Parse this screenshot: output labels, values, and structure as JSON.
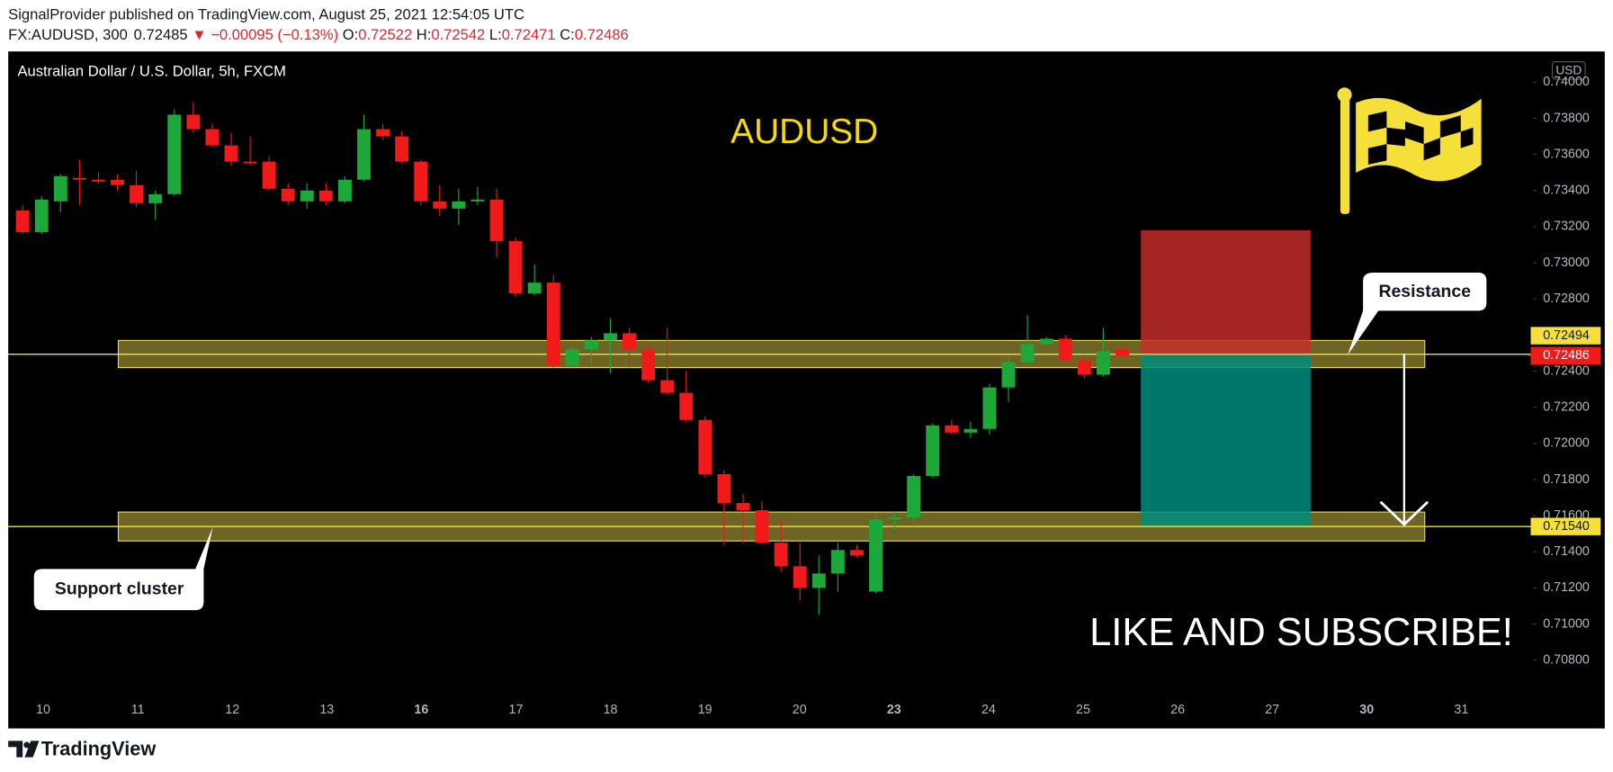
{
  "header": {
    "publisher": "SignalProvider published on TradingView.com, August 25, 2021 12:54:05 UTC",
    "symbol": "FX:AUDUSD, 300",
    "price": "0.72485",
    "change": "▼ −0.00095 (−0.13%)",
    "ohlc": [
      {
        "label": "O:",
        "value": "0.72522"
      },
      {
        "label": "H:",
        "value": "0.72542"
      },
      {
        "label": "L:",
        "value": "0.72471"
      },
      {
        "label": "C:",
        "value": "0.72486"
      }
    ]
  },
  "chart_data": {
    "type": "candlestick",
    "legend_title": "Australian Dollar / U.S. Dollar, 5h, FXCM",
    "title": "AUDUSD",
    "currency": "USD",
    "up_color": "#1fa83a",
    "down_color": "#f01a1a",
    "open": [
      0.7329,
      0.7317,
      0.7334,
      0.7347,
      0.7346,
      0.7346,
      0.7343,
      0.7333,
      0.7338,
      0.7382,
      0.7374,
      0.7365,
      0.7356,
      0.7356,
      0.7341,
      0.7334,
      0.734,
      0.7334,
      0.7346,
      0.7374,
      0.737,
      0.7356,
      0.7334,
      0.733,
      0.7334,
      0.7335,
      0.7312,
      0.7283,
      0.7289,
      0.7243,
      0.7252,
      0.7257,
      0.7261,
      0.7252,
      0.7235,
      0.7228,
      0.7213,
      0.7183,
      0.7167,
      0.7163,
      0.7145,
      0.7132,
      0.712,
      0.7128,
      0.7141,
      0.7118,
      0.7158,
      0.7159,
      0.7182,
      0.721,
      0.7206,
      0.7208,
      0.7231,
      0.7245,
      0.7255,
      0.7258,
      0.7246,
      0.7238,
      0.72522
    ],
    "high": [
      0.7332,
      0.7337,
      0.7349,
      0.7357,
      0.735,
      0.7349,
      0.7351,
      0.734,
      0.7385,
      0.7389,
      0.7377,
      0.7372,
      0.737,
      0.7359,
      0.7344,
      0.7344,
      0.7344,
      0.7348,
      0.7382,
      0.7377,
      0.7373,
      0.7357,
      0.7343,
      0.7341,
      0.7342,
      0.7341,
      0.7314,
      0.7299,
      0.7293,
      0.7253,
      0.7259,
      0.7269,
      0.7264,
      0.7255,
      0.7264,
      0.724,
      0.7215,
      0.7185,
      0.7172,
      0.7168,
      0.7158,
      0.7145,
      0.7138,
      0.7145,
      0.7144,
      0.7161,
      0.7162,
      0.7183,
      0.7211,
      0.7213,
      0.7212,
      0.7233,
      0.7248,
      0.7271,
      0.7259,
      0.726,
      0.7248,
      0.7264,
      0.72542
    ],
    "low": [
      0.7316,
      0.7316,
      0.7328,
      0.7332,
      0.7344,
      0.734,
      0.7331,
      0.7324,
      0.7337,
      0.7372,
      0.7364,
      0.7354,
      0.7354,
      0.734,
      0.7332,
      0.733,
      0.7332,
      0.7333,
      0.7345,
      0.7368,
      0.7355,
      0.7332,
      0.7326,
      0.7321,
      0.7332,
      0.7303,
      0.7281,
      0.7282,
      0.7242,
      0.7242,
      0.7244,
      0.7239,
      0.7242,
      0.7234,
      0.7227,
      0.7212,
      0.7181,
      0.7144,
      0.7145,
      0.7144,
      0.7129,
      0.7113,
      0.7105,
      0.7118,
      0.7137,
      0.7117,
      0.7152,
      0.7154,
      0.7181,
      0.7205,
      0.7203,
      0.7205,
      0.7223,
      0.7244,
      0.7254,
      0.7245,
      0.7236,
      0.7237,
      0.72471
    ],
    "close": [
      0.7317,
      0.7335,
      0.7348,
      0.7346,
      0.7345,
      0.7343,
      0.7333,
      0.7338,
      0.7382,
      0.7374,
      0.7365,
      0.7356,
      0.7355,
      0.7341,
      0.7334,
      0.734,
      0.7334,
      0.7346,
      0.7374,
      0.737,
      0.7356,
      0.7334,
      0.733,
      0.7334,
      0.7335,
      0.7312,
      0.7283,
      0.7289,
      0.7243,
      0.7252,
      0.7257,
      0.7261,
      0.7252,
      0.7235,
      0.7228,
      0.7213,
      0.7183,
      0.7167,
      0.7163,
      0.7145,
      0.7132,
      0.712,
      0.7128,
      0.7141,
      0.7138,
      0.7158,
      0.7159,
      0.7182,
      0.721,
      0.7206,
      0.7208,
      0.7231,
      0.7245,
      0.7255,
      0.7258,
      0.7246,
      0.7238,
      0.7251,
      0.72486
    ],
    "x_labels": [
      "10",
      "11",
      "12",
      "13",
      "16",
      "17",
      "18",
      "19",
      "20",
      "23",
      "24",
      "25",
      "26",
      "27",
      "30",
      "31"
    ],
    "ylim": [
      0.7061,
      0.7417
    ],
    "yticks": [
      {
        "value": 0.74,
        "label": "0.74000"
      },
      {
        "value": 0.738,
        "label": "0.73800"
      },
      {
        "value": 0.736,
        "label": "0.73600"
      },
      {
        "value": 0.734,
        "label": "0.73400"
      },
      {
        "value": 0.732,
        "label": "0.73200"
      },
      {
        "value": 0.73,
        "label": "0.73000"
      },
      {
        "value": 0.728,
        "label": "0.72800"
      },
      {
        "value": 0.724,
        "label": "0.72400"
      },
      {
        "value": 0.722,
        "label": "0.72200"
      },
      {
        "value": 0.72,
        "label": "0.72000"
      },
      {
        "value": 0.718,
        "label": "0.71800"
      },
      {
        "value": 0.716,
        "label": "0.71600"
      },
      {
        "value": 0.714,
        "label": "0.71400"
      },
      {
        "value": 0.712,
        "label": "0.71200"
      },
      {
        "value": 0.71,
        "label": "0.71000"
      },
      {
        "value": 0.708,
        "label": "0.70800"
      }
    ],
    "hlines": [
      {
        "value": 0.72494,
        "label": "0.72494"
      },
      {
        "value": 0.7154,
        "label": "0.71540"
      }
    ],
    "last_price": {
      "value": 0.72486,
      "label": "0.72486"
    },
    "zones": [
      {
        "name": "Resistance",
        "range": [
          0.7242,
          0.7257
        ]
      },
      {
        "name": "Support cluster",
        "range": [
          0.7146,
          0.7162
        ]
      }
    ],
    "position": {
      "stop": 0.7318,
      "entry": 0.72494,
      "target": 0.7154
    },
    "annotation": "LIKE AND SUBSCRIBE!"
  },
  "footer": {
    "brand": "TradingView"
  }
}
